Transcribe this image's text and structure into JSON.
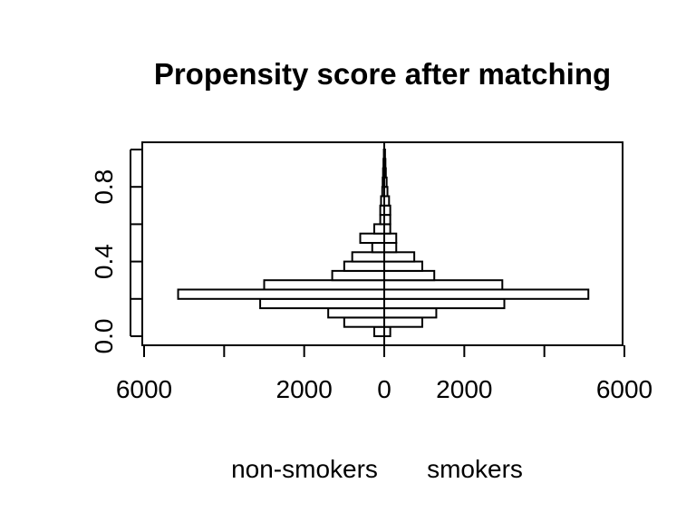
{
  "chart_data": {
    "type": "bar",
    "orientation": "horizontal",
    "layout": "back-to-back",
    "title": "Propensity score after matching",
    "xlabel_left": "non-smokers",
    "xlabel_right": "smokers",
    "ylabel": "",
    "xlim": [
      -6000,
      6000
    ],
    "ylim": [
      0,
      1
    ],
    "x_tick_labels": [
      "6000",
      "2000",
      "0",
      "2000",
      "6000"
    ],
    "x_tick_values": [
      -6000,
      -4000,
      -2000,
      0,
      2000,
      4000,
      6000
    ],
    "x_tick_label_values": [
      -6000,
      -2000,
      0,
      2000,
      6000
    ],
    "y_ticks": [
      0.0,
      0.2,
      0.4,
      0.6,
      0.8,
      1.0
    ],
    "y_tick_labels": [
      "0.0",
      "0.4",
      "0.8"
    ],
    "y_tick_label_values": [
      0.0,
      0.4,
      0.8
    ],
    "bin_width": 0.05,
    "bins": [
      {
        "lo": 0.0,
        "hi": 0.05,
        "non_smokers": 250,
        "smokers": 150
      },
      {
        "lo": 0.05,
        "hi": 0.1,
        "non_smokers": 1000,
        "smokers": 950
      },
      {
        "lo": 0.1,
        "hi": 0.15,
        "non_smokers": 1400,
        "smokers": 1300
      },
      {
        "lo": 0.15,
        "hi": 0.2,
        "non_smokers": 3100,
        "smokers": 3000
      },
      {
        "lo": 0.2,
        "hi": 0.25,
        "non_smokers": 5150,
        "smokers": 5100
      },
      {
        "lo": 0.25,
        "hi": 0.3,
        "non_smokers": 3000,
        "smokers": 2950
      },
      {
        "lo": 0.3,
        "hi": 0.35,
        "non_smokers": 1300,
        "smokers": 1250
      },
      {
        "lo": 0.35,
        "hi": 0.4,
        "non_smokers": 1000,
        "smokers": 950
      },
      {
        "lo": 0.4,
        "hi": 0.45,
        "non_smokers": 800,
        "smokers": 750
      },
      {
        "lo": 0.45,
        "hi": 0.5,
        "non_smokers": 300,
        "smokers": 300
      },
      {
        "lo": 0.5,
        "hi": 0.55,
        "non_smokers": 600,
        "smokers": 300
      },
      {
        "lo": 0.55,
        "hi": 0.6,
        "non_smokers": 250,
        "smokers": 150
      },
      {
        "lo": 0.6,
        "hi": 0.65,
        "non_smokers": 100,
        "smokers": 150
      },
      {
        "lo": 0.65,
        "hi": 0.7,
        "non_smokers": 100,
        "smokers": 150
      },
      {
        "lo": 0.7,
        "hi": 0.75,
        "non_smokers": 80,
        "smokers": 120
      },
      {
        "lo": 0.75,
        "hi": 0.8,
        "non_smokers": 50,
        "smokers": 80
      },
      {
        "lo": 0.8,
        "hi": 0.85,
        "non_smokers": 40,
        "smokers": 60
      },
      {
        "lo": 0.85,
        "hi": 0.9,
        "non_smokers": 30,
        "smokers": 40
      },
      {
        "lo": 0.9,
        "hi": 0.95,
        "non_smokers": 20,
        "smokers": 30
      },
      {
        "lo": 0.95,
        "hi": 1.0,
        "non_smokers": 10,
        "smokers": 20
      }
    ],
    "grid": false,
    "legend": "none",
    "bar_fill": "#ffffff",
    "bar_stroke": "#000000"
  }
}
